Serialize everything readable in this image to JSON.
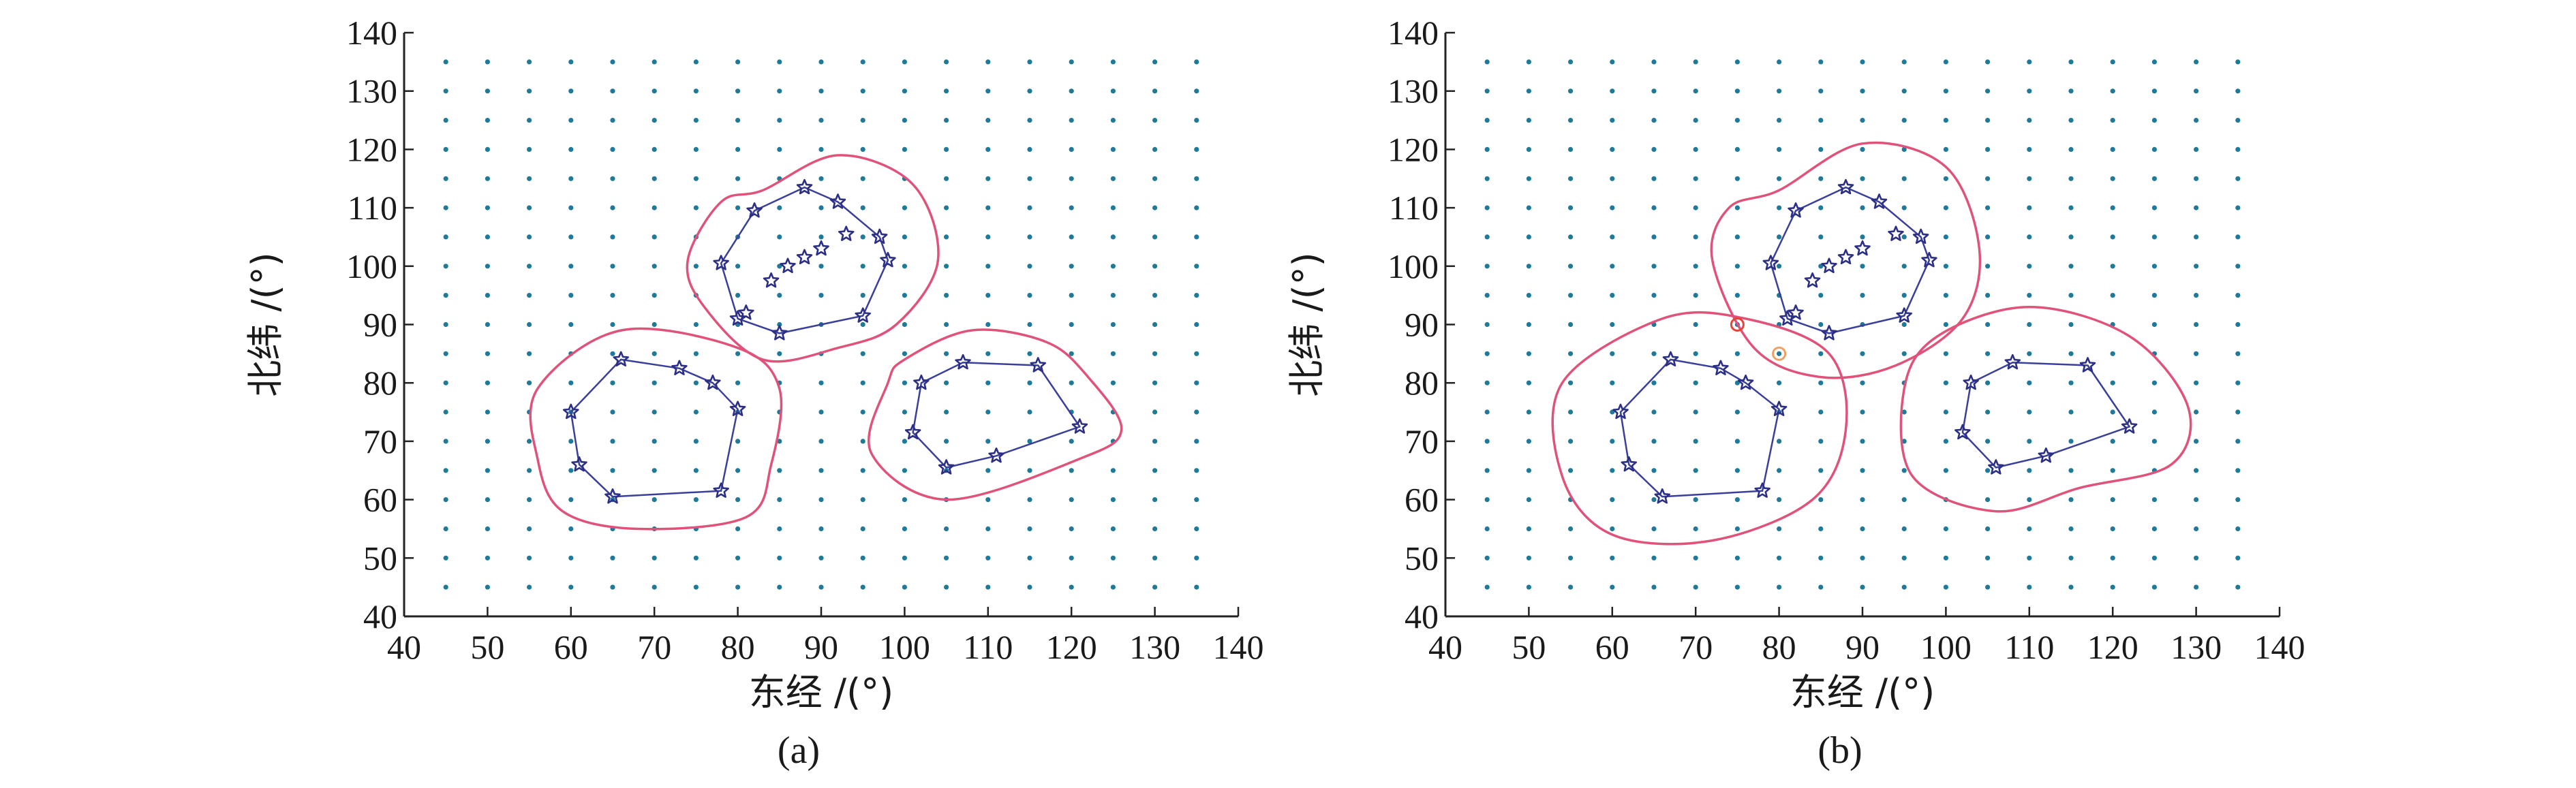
{
  "colors": {
    "grid_dot": "#1f7a99",
    "hull": "#3a3f9a",
    "boundary": "#e0527a",
    "star": "#2c2f86",
    "marker_red": "#e8433a",
    "marker_orange": "#f0a060"
  },
  "chart_data": [
    {
      "type": "scatter",
      "panel_label": "(a)",
      "xlabel": "东经 /(°)",
      "ylabel": "北纬 /(°)",
      "xlim": [
        40,
        140
      ],
      "ylim": [
        40,
        140
      ],
      "xticks": [
        "40",
        "50",
        "60",
        "70",
        "80",
        "90",
        "100",
        "110",
        "120",
        "130",
        "140"
      ],
      "yticks": [
        "40",
        "50",
        "60",
        "70",
        "80",
        "90",
        "100",
        "110",
        "120",
        "130",
        "140"
      ],
      "grid_points": {
        "x_start": 45,
        "x_end": 135,
        "x_step": 5,
        "y_start": 45,
        "y_end": 135,
        "y_step": 5
      },
      "clusters": [
        {
          "hull": [
            [
              66,
              84
            ],
            [
              73,
              82.5
            ],
            [
              77,
              80
            ],
            [
              80,
              75.5
            ],
            [
              78,
              61.5
            ],
            [
              65,
              60.5
            ],
            [
              61,
              66
            ],
            [
              60,
              75
            ]
          ],
          "stars": [
            [
              66,
              84
            ],
            [
              73,
              82.5
            ],
            [
              77,
              80
            ],
            [
              80,
              75.5
            ],
            [
              78,
              61.5
            ],
            [
              65,
              60.5
            ],
            [
              61,
              66
            ],
            [
              60,
              75
            ]
          ],
          "boundary": [
            [
              56,
              79
            ],
            [
              66,
              89
            ],
            [
              80,
              86
            ],
            [
              85,
              79
            ],
            [
              84,
              66
            ],
            [
              81,
              57
            ],
            [
              68,
              55
            ],
            [
              59,
              58
            ],
            [
              56,
              67
            ]
          ]
        },
        {
          "hull": [
            [
              88,
              113.5
            ],
            [
              92,
              111
            ],
            [
              97,
              105
            ],
            [
              98,
              101
            ],
            [
              95,
              91.5
            ],
            [
              85,
              88.5
            ],
            [
              80,
              91
            ],
            [
              78,
              100.5
            ],
            [
              82,
              109.5
            ]
          ],
          "stars": [
            [
              88,
              113.5
            ],
            [
              92,
              111
            ],
            [
              97,
              105
            ],
            [
              98,
              101
            ],
            [
              95,
              91.5
            ],
            [
              85,
              88.5
            ],
            [
              80,
              91
            ],
            [
              81,
              92
            ],
            [
              78,
              100.5
            ],
            [
              82,
              109.5
            ],
            [
              84,
              97.5
            ],
            [
              86,
              100
            ],
            [
              88,
              101.5
            ],
            [
              90,
              103
            ],
            [
              93,
              105.5
            ]
          ],
          "boundary": [
            [
              83,
              113
            ],
            [
              92,
              119
            ],
            [
              101,
              114
            ],
            [
              104,
              101
            ],
            [
              99,
              90
            ],
            [
              92,
              86
            ],
            [
              83,
              84
            ],
            [
              76,
              93
            ],
            [
              74,
              101
            ],
            [
              78,
              111
            ]
          ]
        },
        {
          "hull": [
            [
              107,
              83.5
            ],
            [
              116,
              83
            ],
            [
              121,
              72.5
            ],
            [
              111,
              67.5
            ],
            [
              105,
              65.5
            ],
            [
              101,
              71.5
            ],
            [
              102,
              80
            ]
          ],
          "stars": [
            [
              107,
              83.5
            ],
            [
              116,
              83
            ],
            [
              121,
              72.5
            ],
            [
              111,
              67.5
            ],
            [
              105,
              65.5
            ],
            [
              101,
              71.5
            ],
            [
              102,
              80
            ]
          ],
          "boundary": [
            [
              100,
              84
            ],
            [
              108,
              89
            ],
            [
              117,
              87
            ],
            [
              122,
              81
            ],
            [
              126,
              72
            ],
            [
              121,
              67
            ],
            [
              105,
              60
            ],
            [
              96,
              68
            ],
            [
              98,
              80
            ]
          ]
        }
      ],
      "markers": []
    },
    {
      "type": "scatter",
      "panel_label": "(b)",
      "xlabel": "东经 /(°)",
      "ylabel": "北纬 /(°)",
      "xlim": [
        40,
        140
      ],
      "ylim": [
        40,
        140
      ],
      "xticks": [
        "40",
        "50",
        "60",
        "70",
        "80",
        "90",
        "100",
        "110",
        "120",
        "130",
        "140"
      ],
      "yticks": [
        "40",
        "50",
        "60",
        "70",
        "80",
        "90",
        "100",
        "110",
        "120",
        "130",
        "140"
      ],
      "grid_points": {
        "x_start": 45,
        "x_end": 135,
        "x_step": 5,
        "y_start": 45,
        "y_end": 135,
        "y_step": 5
      },
      "clusters": [
        {
          "hull": [
            [
              67,
              84
            ],
            [
              73,
              82.5
            ],
            [
              76,
              80
            ],
            [
              80,
              75.5
            ],
            [
              78,
              61.5
            ],
            [
              66,
              60.5
            ],
            [
              62,
              66
            ],
            [
              61,
              75
            ]
          ],
          "stars": [
            [
              67,
              84
            ],
            [
              73,
              82.5
            ],
            [
              76,
              80
            ],
            [
              80,
              75.5
            ],
            [
              78,
              61.5
            ],
            [
              66,
              60.5
            ],
            [
              62,
              66
            ],
            [
              61,
              75
            ]
          ],
          "boundary": [
            [
              54,
              80
            ],
            [
              66,
              91
            ],
            [
              76,
              91
            ],
            [
              86,
              85
            ],
            [
              88,
              72
            ],
            [
              84,
              60
            ],
            [
              72,
              53
            ],
            [
              60,
              54
            ],
            [
              54,
              64
            ]
          ]
        },
        {
          "hull": [
            [
              88,
              113.5
            ],
            [
              92,
              111
            ],
            [
              97,
              105
            ],
            [
              98,
              101
            ],
            [
              95,
              91.5
            ],
            [
              86,
              88.5
            ],
            [
              81,
              91
            ],
            [
              79,
              100.5
            ],
            [
              82,
              109.5
            ]
          ],
          "stars": [
            [
              88,
              113.5
            ],
            [
              92,
              111
            ],
            [
              97,
              105
            ],
            [
              98,
              101
            ],
            [
              95,
              91.5
            ],
            [
              86,
              88.5
            ],
            [
              81,
              91
            ],
            [
              82,
              92
            ],
            [
              79,
              100.5
            ],
            [
              82,
              109.5
            ],
            [
              84,
              97.5
            ],
            [
              86,
              100
            ],
            [
              88,
              101.5
            ],
            [
              90,
              103
            ],
            [
              94,
              105.5
            ]
          ],
          "boundary": [
            [
              80,
              113
            ],
            [
              90,
              121
            ],
            [
              100,
              117
            ],
            [
              104,
              103
            ],
            [
              102,
              91
            ],
            [
              94,
              83
            ],
            [
              85,
              81
            ],
            [
              77,
              86
            ],
            [
              72,
              101
            ],
            [
              74,
              110
            ]
          ]
        },
        {
          "hull": [
            [
              108,
              83.5
            ],
            [
              117,
              83
            ],
            [
              122,
              72.5
            ],
            [
              112,
              67.5
            ],
            [
              106,
              65.5
            ],
            [
              102,
              71.5
            ],
            [
              103,
              80
            ]
          ],
          "stars": [
            [
              108,
              83.5
            ],
            [
              117,
              83
            ],
            [
              122,
              72.5
            ],
            [
              112,
              67.5
            ],
            [
              106,
              65.5
            ],
            [
              102,
              71.5
            ],
            [
              103,
              80
            ]
          ],
          "boundary": [
            [
              99,
              88
            ],
            [
              110,
              93
            ],
            [
              122,
              88
            ],
            [
              129,
              76
            ],
            [
              127,
              66
            ],
            [
              116,
              62
            ],
            [
              106,
              58
            ],
            [
              96,
              64
            ],
            [
              95,
              79
            ]
          ]
        }
      ],
      "markers": [
        {
          "x": 75,
          "y": 90,
          "kind": "circle",
          "color": "#e8433a"
        },
        {
          "x": 80,
          "y": 85,
          "kind": "circle",
          "color": "#f0a060"
        }
      ]
    }
  ]
}
